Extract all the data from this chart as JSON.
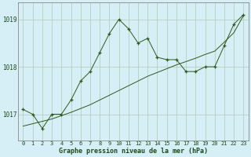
{
  "x": [
    0,
    1,
    2,
    3,
    4,
    5,
    6,
    7,
    8,
    9,
    10,
    11,
    12,
    13,
    14,
    15,
    16,
    17,
    18,
    19,
    20,
    21,
    22,
    23
  ],
  "y_main": [
    1017.1,
    1017.0,
    1016.7,
    1017.0,
    1017.0,
    1017.3,
    1017.7,
    1017.9,
    1018.3,
    1018.7,
    1019.0,
    1018.8,
    1018.5,
    1018.6,
    1018.2,
    1018.15,
    1018.15,
    1017.9,
    1017.9,
    1018.0,
    1018.0,
    1018.45,
    1018.9,
    1019.1
  ],
  "y_trend": [
    1016.75,
    1016.8,
    1016.85,
    1016.9,
    1016.97,
    1017.04,
    1017.12,
    1017.2,
    1017.3,
    1017.4,
    1017.5,
    1017.6,
    1017.7,
    1017.8,
    1017.88,
    1017.96,
    1018.04,
    1018.11,
    1018.18,
    1018.26,
    1018.33,
    1018.52,
    1018.72,
    1019.08
  ],
  "line_color": "#2d5a1b",
  "bg_color": "#d6eef5",
  "grid_color": "#b0c8b0",
  "axis_color": "#888888",
  "text_color": "#1a4a1a",
  "ylabel_ticks": [
    1017,
    1018,
    1019
  ],
  "xlabel": "Graphe pression niveau de la mer (hPa)",
  "ylim": [
    1016.45,
    1019.35
  ],
  "xlim": [
    -0.5,
    23.5
  ],
  "tick_fontsize": 5.0,
  "xlabel_fontsize": 6.0
}
